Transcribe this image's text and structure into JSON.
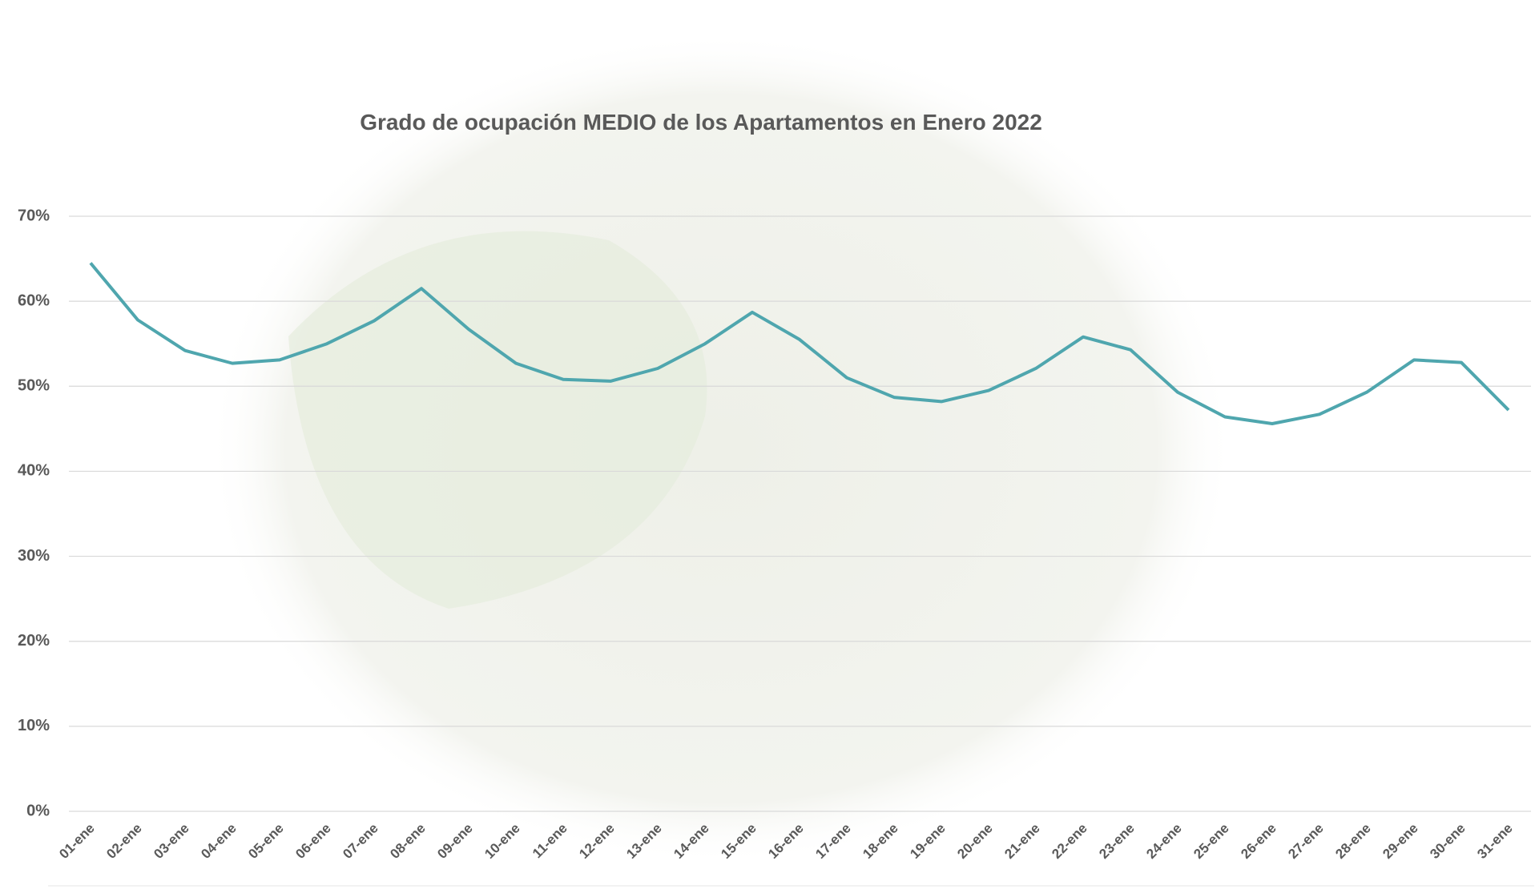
{
  "chart_data": {
    "type": "line",
    "title": "Grado de ocupación MEDIO de los Apartamentos en Enero 2022",
    "categories": [
      "01-ene",
      "02-ene",
      "03-ene",
      "04-ene",
      "05-ene",
      "06-ene",
      "07-ene",
      "08-ene",
      "09-ene",
      "10-ene",
      "11-ene",
      "12-ene",
      "13-ene",
      "14-ene",
      "15-ene",
      "16-ene",
      "17-ene",
      "18-ene",
      "19-ene",
      "20-ene",
      "21-ene",
      "22-ene",
      "23-ene",
      "24-ene",
      "25-ene",
      "26-ene",
      "27-ene",
      "28-ene",
      "29-ene",
      "30-ene",
      "31-ene"
    ],
    "series": [
      {
        "color": "#4fa6ae",
        "values": [
          64.5,
          57.8,
          54.2,
          52.7,
          53.1,
          55.0,
          57.7,
          61.5,
          56.7,
          52.7,
          50.8,
          50.6,
          52.1,
          55.0,
          58.7,
          55.5,
          51.0,
          48.7,
          48.2,
          49.5,
          52.1,
          55.8,
          54.3,
          49.3,
          46.4,
          45.6,
          46.7,
          49.3,
          53.1,
          52.8,
          47.2
        ]
      }
    ],
    "ylim": [
      0,
      70
    ],
    "yticks": [
      {
        "value": 0,
        "label": "0%"
      },
      {
        "value": 10,
        "label": "10%"
      },
      {
        "value": 20,
        "label": "20%"
      },
      {
        "value": 30,
        "label": "30%"
      },
      {
        "value": 40,
        "label": "40%"
      },
      {
        "value": 50,
        "label": "50%"
      },
      {
        "value": 60,
        "label": "60%"
      },
      {
        "value": 70,
        "label": "70%"
      }
    ],
    "grid": true
  }
}
